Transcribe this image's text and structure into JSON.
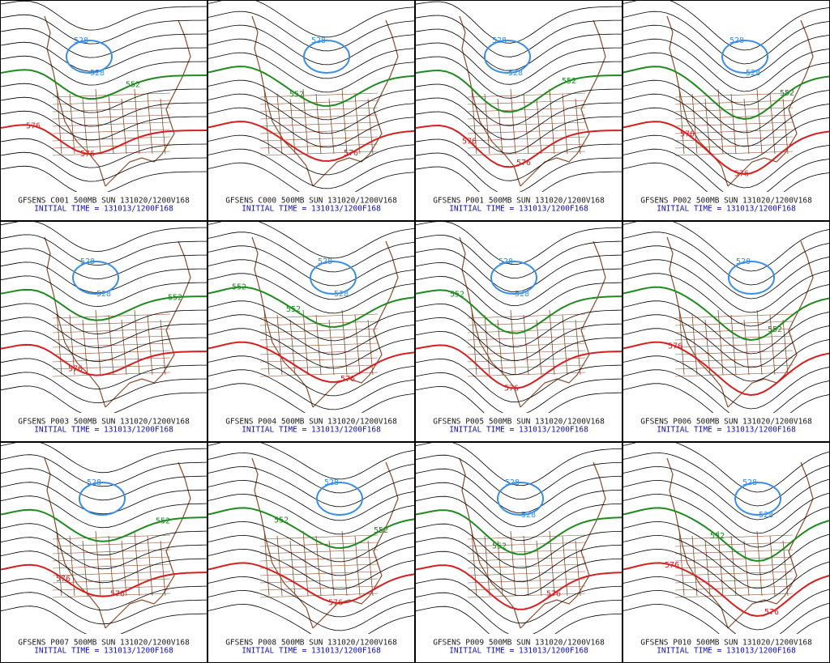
{
  "panels": [
    {
      "caption": "GFSENS C001 500MB SUN 131020/1200V168",
      "initial": "INITIAL TIME = 131013/1200F168",
      "labels": [
        {
          "text": "528",
          "color": "#3a8ee6"
        },
        {
          "text": "528",
          "color": "#3a8ee6"
        },
        {
          "text": "552",
          "color": "#1f8a1f"
        },
        {
          "text": "576",
          "color": "#d42020"
        },
        {
          "text": "576",
          "color": "#d42020"
        }
      ]
    },
    {
      "caption": "GFSENS C000 500MB SUN 131020/1200V168",
      "initial": "INITIAL TIME = 131013/1200F168",
      "labels": [
        {
          "text": "528",
          "color": "#3a8ee6"
        },
        {
          "text": "552",
          "color": "#1f8a1f"
        },
        {
          "text": "576",
          "color": "#d42020"
        }
      ]
    },
    {
      "caption": "GFSENS P001 500MB SUN 131020/1200V168",
      "initial": "INITIAL TIME = 131013/1200F168",
      "labels": [
        {
          "text": "528",
          "color": "#3a8ee6"
        },
        {
          "text": "528",
          "color": "#3a8ee6"
        },
        {
          "text": "552",
          "color": "#1f8a1f"
        },
        {
          "text": "576",
          "color": "#d42020"
        },
        {
          "text": "576",
          "color": "#d42020"
        }
      ]
    },
    {
      "caption": "GFSENS P002 500MB SUN 131020/1200V168",
      "initial": "INITIAL TIME = 131013/1200F168",
      "labels": [
        {
          "text": "528",
          "color": "#3a8ee6"
        },
        {
          "text": "528",
          "color": "#3a8ee6"
        },
        {
          "text": "552",
          "color": "#1f8a1f"
        },
        {
          "text": "576",
          "color": "#d42020"
        },
        {
          "text": "576",
          "color": "#d42020"
        }
      ]
    },
    {
      "caption": "GFSENS P003 500MB SUN 131020/1200V168",
      "initial": "INITIAL TIME = 131013/1200F168",
      "labels": [
        {
          "text": "528",
          "color": "#3a8ee6"
        },
        {
          "text": "528",
          "color": "#3a8ee6"
        },
        {
          "text": "552",
          "color": "#1f8a1f"
        },
        {
          "text": "576",
          "color": "#d42020"
        }
      ]
    },
    {
      "caption": "GFSENS P004 500MB SUN 131020/1200V168",
      "initial": "INITIAL TIME = 131013/1200F168",
      "labels": [
        {
          "text": "528",
          "color": "#3a8ee6"
        },
        {
          "text": "528",
          "color": "#3a8ee6"
        },
        {
          "text": "552",
          "color": "#1f8a1f"
        },
        {
          "text": "552",
          "color": "#1f8a1f"
        },
        {
          "text": "576",
          "color": "#d42020"
        }
      ]
    },
    {
      "caption": "GFSENS P005 500MB SUN 131020/1200V168",
      "initial": "INITIAL TIME = 131013/1200F168",
      "labels": [
        {
          "text": "528",
          "color": "#3a8ee6"
        },
        {
          "text": "528",
          "color": "#3a8ee6"
        },
        {
          "text": "552",
          "color": "#1f8a1f"
        },
        {
          "text": "576",
          "color": "#d42020"
        }
      ]
    },
    {
      "caption": "GFSENS P006 500MB SUN 131020/1200V168",
      "initial": "INITIAL TIME = 131013/1200F168",
      "labels": [
        {
          "text": "528",
          "color": "#3a8ee6"
        },
        {
          "text": "552",
          "color": "#1f8a1f"
        },
        {
          "text": "576",
          "color": "#d42020"
        }
      ]
    },
    {
      "caption": "GFSENS P007 500MB SUN 131020/1200V168",
      "initial": "INITIAL TIME = 131013/1200F168",
      "labels": [
        {
          "text": "528",
          "color": "#3a8ee6"
        },
        {
          "text": "552",
          "color": "#1f8a1f"
        },
        {
          "text": "576",
          "color": "#d42020"
        },
        {
          "text": "576",
          "color": "#d42020"
        }
      ]
    },
    {
      "caption": "GFSENS P008 500MB SUN 131020/1200V168",
      "initial": "INITIAL TIME = 131013/1200F168",
      "labels": [
        {
          "text": "528",
          "color": "#3a8ee6"
        },
        {
          "text": "552",
          "color": "#1f8a1f"
        },
        {
          "text": "552",
          "color": "#1f8a1f"
        },
        {
          "text": "576",
          "color": "#d42020"
        }
      ]
    },
    {
      "caption": "GFSENS P009 500MB SUN 131020/1200V168",
      "initial": "INITIAL TIME = 131013/1200F168",
      "labels": [
        {
          "text": "528",
          "color": "#3a8ee6"
        },
        {
          "text": "528",
          "color": "#3a8ee6"
        },
        {
          "text": "552",
          "color": "#1f8a1f"
        },
        {
          "text": "576",
          "color": "#d42020"
        }
      ]
    },
    {
      "caption": "GFSENS P010 500MB SUN 131020/1200V168",
      "initial": "INITIAL TIME = 131013/1200F168",
      "labels": [
        {
          "text": "528",
          "color": "#3a8ee6"
        },
        {
          "text": "528",
          "color": "#3a8ee6"
        },
        {
          "text": "552",
          "color": "#1f8a1f"
        },
        {
          "text": "576",
          "color": "#d42020"
        },
        {
          "text": "576",
          "color": "#d42020"
        }
      ]
    }
  ]
}
